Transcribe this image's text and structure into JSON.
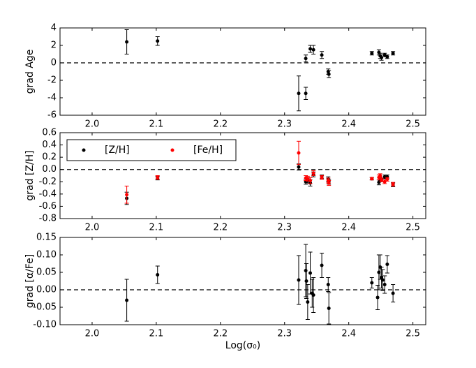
{
  "chart_data": [
    {
      "type": "scatter",
      "ylabel": "grad Age",
      "x": [
        2.054,
        2.102,
        2.322,
        2.333,
        2.333,
        2.34,
        2.345,
        2.358,
        2.368,
        2.369,
        2.436,
        2.447,
        2.449,
        2.451,
        2.456,
        2.46,
        2.469
      ],
      "series": [
        {
          "color": "#000000",
          "values": [
            2.4,
            2.5,
            -3.5,
            0.5,
            -3.5,
            1.6,
            1.5,
            0.9,
            -1.0,
            -1.3,
            1.1,
            1.2,
            0.8,
            0.6,
            0.9,
            0.7,
            1.1
          ],
          "errors": [
            1.4,
            0.5,
            2.0,
            0.4,
            0.7,
            0.4,
            0.5,
            0.4,
            0.3,
            0.4,
            0.2,
            0.3,
            0.3,
            0.3,
            0.2,
            0.2,
            0.2
          ]
        }
      ],
      "xlim": [
        1.95,
        2.52
      ],
      "xticks": [
        {
          "value": 2,
          "label": "2.0"
        },
        2.1,
        2.2,
        2.3,
        2.4,
        2.5
      ],
      "ylim": [
        -6,
        4
      ],
      "yticks": [
        -6,
        -4,
        -2,
        0,
        2,
        4
      ],
      "hline": 0
    },
    {
      "type": "scatter",
      "ylabel": "grad [Z/H]",
      "legend": "upper left",
      "x": [
        2.054,
        2.102,
        2.322,
        2.333,
        2.336,
        2.34,
        2.345,
        2.358,
        2.368,
        2.369,
        2.436,
        2.447,
        2.449,
        2.451,
        2.456,
        2.46,
        2.469
      ],
      "series": [
        {
          "name": "[Z/H]",
          "color": "#000000",
          "values": [
            -0.47,
            -0.14,
            0.04,
            -0.2,
            -0.18,
            -0.22,
            -0.08,
            -0.12,
            -0.16,
            -0.2,
            -0.15,
            -0.21,
            -0.15,
            -0.17,
            -0.12,
            -0.12,
            -0.25
          ],
          "errors": [
            0.1,
            0.03,
            0.05,
            0.04,
            0.04,
            0.05,
            0.04,
            0.03,
            0.04,
            0.04,
            0.02,
            0.04,
            0.03,
            0.03,
            0.03,
            0.03,
            0.03
          ]
        },
        {
          "name": "[Fe/H]",
          "color": "#ff0000",
          "values": [
            -0.41,
            -0.13,
            0.27,
            -0.14,
            -0.15,
            -0.18,
            -0.06,
            -0.13,
            -0.18,
            -0.22,
            -0.15,
            -0.13,
            -0.1,
            -0.17,
            -0.2,
            -0.16,
            -0.24
          ],
          "errors": [
            0.14,
            0.03,
            0.19,
            0.04,
            0.04,
            0.05,
            0.04,
            0.03,
            0.04,
            0.04,
            0.02,
            0.04,
            0.03,
            0.03,
            0.03,
            0.03,
            0.03
          ]
        }
      ],
      "xlim": [
        1.95,
        2.52
      ],
      "xticks": [
        {
          "value": 2,
          "label": "2.0"
        },
        2.1,
        2.2,
        2.3,
        2.4,
        2.5
      ],
      "ylim": [
        -0.8,
        0.6
      ],
      "yticks": [
        -0.8,
        -0.6,
        -0.4,
        -0.2,
        {
          "value": 0,
          "label": "0.0"
        },
        0.2,
        0.4,
        0.6
      ],
      "hline": 0
    },
    {
      "type": "scatter",
      "ylabel": "grad [α/Fe]",
      "xlabel": "Log(σ₀)",
      "x": [
        2.054,
        2.102,
        2.322,
        2.333,
        2.334,
        2.336,
        2.34,
        2.343,
        2.345,
        2.358,
        2.368,
        2.369,
        2.436,
        2.445,
        2.447,
        2.449,
        2.451,
        2.453,
        2.456,
        2.46,
        2.469
      ],
      "series": [
        {
          "color": "#000000",
          "values": [
            -0.03,
            0.043,
            0.028,
            0.055,
            0.025,
            -0.035,
            0.048,
            -0.01,
            -0.015,
            0.07,
            0.015,
            -0.053,
            0.02,
            -0.022,
            0.05,
            0.065,
            0.035,
            0.028,
            0.015,
            0.073,
            -0.01
          ],
          "errors": [
            0.06,
            0.025,
            0.07,
            0.075,
            0.05,
            0.05,
            0.06,
            0.04,
            0.05,
            0.035,
            0.02,
            0.045,
            0.015,
            0.035,
            0.05,
            0.035,
            0.03,
            0.03,
            0.025,
            0.025,
            0.025
          ]
        }
      ],
      "xlim": [
        1.95,
        2.52
      ],
      "xticks": [
        {
          "value": 2,
          "label": "2.0"
        },
        2.1,
        2.2,
        2.3,
        2.4,
        2.5
      ],
      "ylim": [
        -0.1,
        0.15
      ],
      "yticks": [
        {
          "value": -0.1,
          "label": "-0.10"
        },
        -0.05,
        {
          "value": 0,
          "label": "0.00"
        },
        0.05,
        {
          "value": 0.1,
          "label": "0.10"
        },
        0.15
      ],
      "hline": 0
    }
  ]
}
